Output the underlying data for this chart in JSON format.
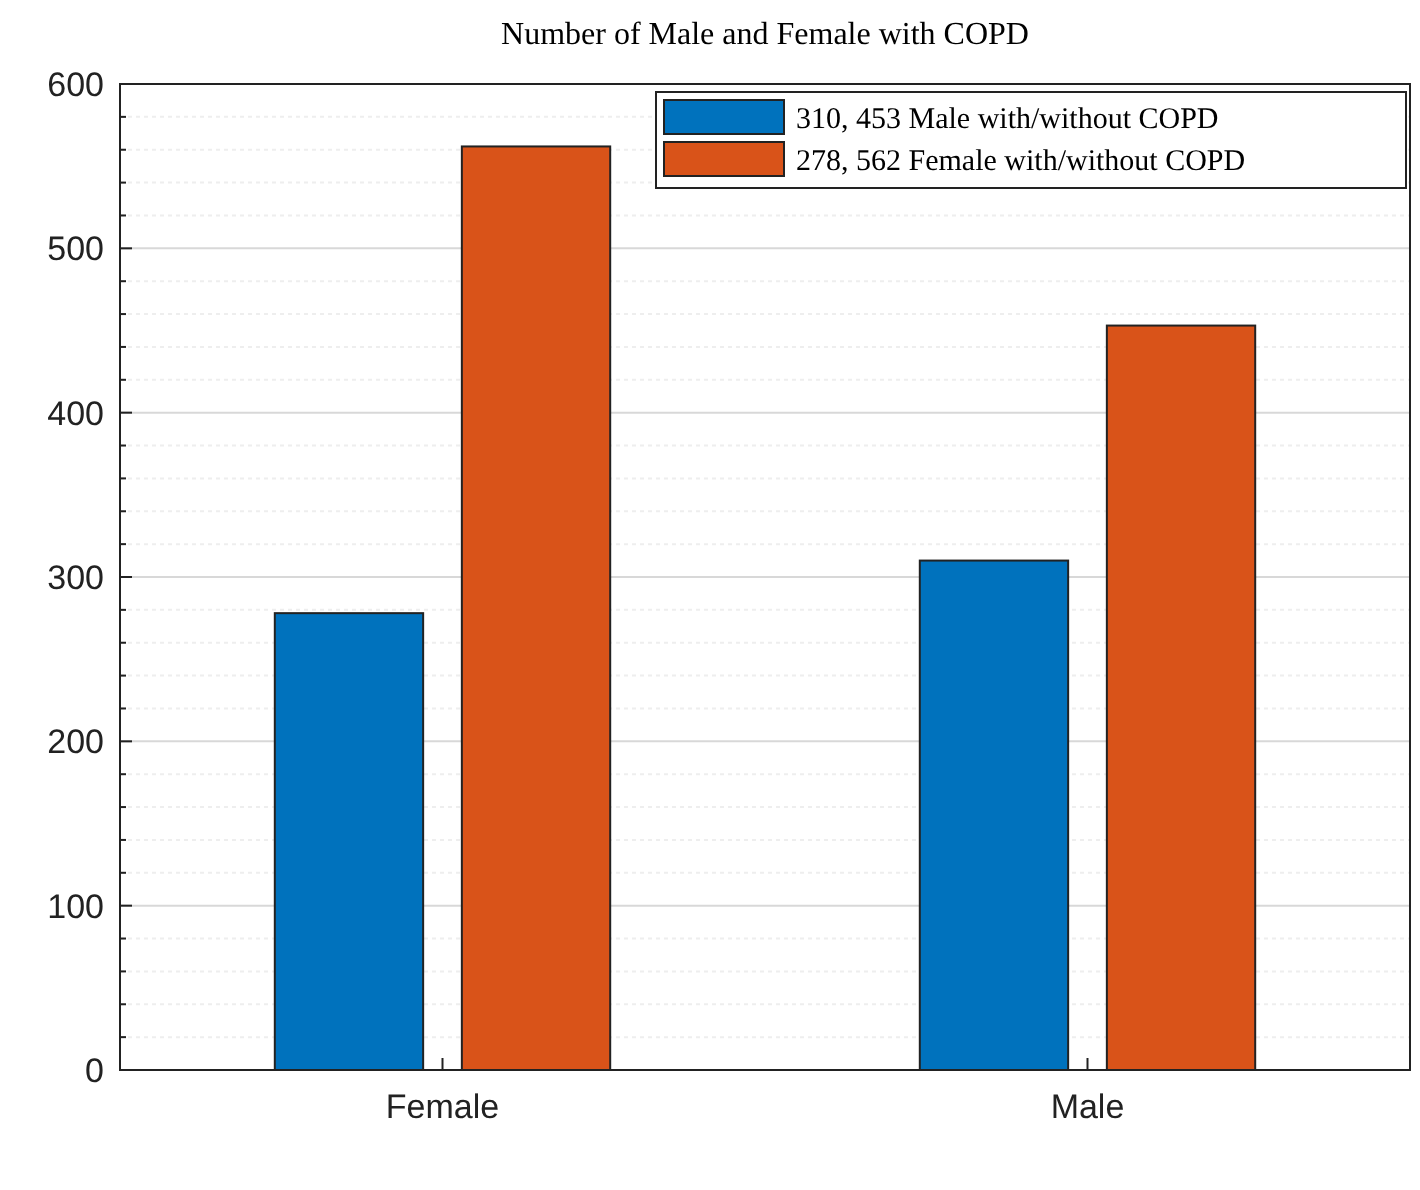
{
  "chart_data": {
    "type": "bar",
    "title": "Number of Male and Female with COPD",
    "categories": [
      "Female",
      "Male"
    ],
    "series": [
      {
        "name": "310, 453 Male with/without COPD",
        "color": "#0072bd",
        "values": [
          278,
          310
        ]
      },
      {
        "name": "278, 562 Female with/without COPD",
        "color": "#d95319",
        "values": [
          562,
          453
        ]
      }
    ],
    "ylim": [
      0,
      600
    ],
    "yticks": [
      0,
      {
        "value": 20,
        "label": null
      },
      {
        "value": 40,
        "label": null
      },
      {
        "value": 60,
        "label": null
      },
      {
        "value": 80,
        "label": null
      },
      100,
      {
        "value": 120,
        "label": null
      },
      {
        "value": 140,
        "label": null
      },
      {
        "value": 160,
        "label": null
      },
      {
        "value": 180,
        "label": null
      },
      200,
      {
        "value": 220,
        "label": null
      },
      {
        "value": 240,
        "label": null
      },
      {
        "value": 260,
        "label": null
      },
      {
        "value": 280,
        "label": null
      },
      300,
      {
        "value": 320,
        "label": null
      },
      {
        "value": 340,
        "label": null
      },
      {
        "value": 360,
        "label": null
      },
      {
        "value": 380,
        "label": null
      },
      400,
      {
        "value": 420,
        "label": null
      },
      {
        "value": 440,
        "label": null
      },
      {
        "value": 460,
        "label": null
      },
      {
        "value": 480,
        "label": null
      },
      500,
      {
        "value": 520,
        "label": null
      },
      {
        "value": 540,
        "label": null
      },
      {
        "value": 560,
        "label": null
      },
      {
        "value": 580,
        "label": null
      },
      600
    ],
    "grid": true,
    "legend": "top right"
  }
}
